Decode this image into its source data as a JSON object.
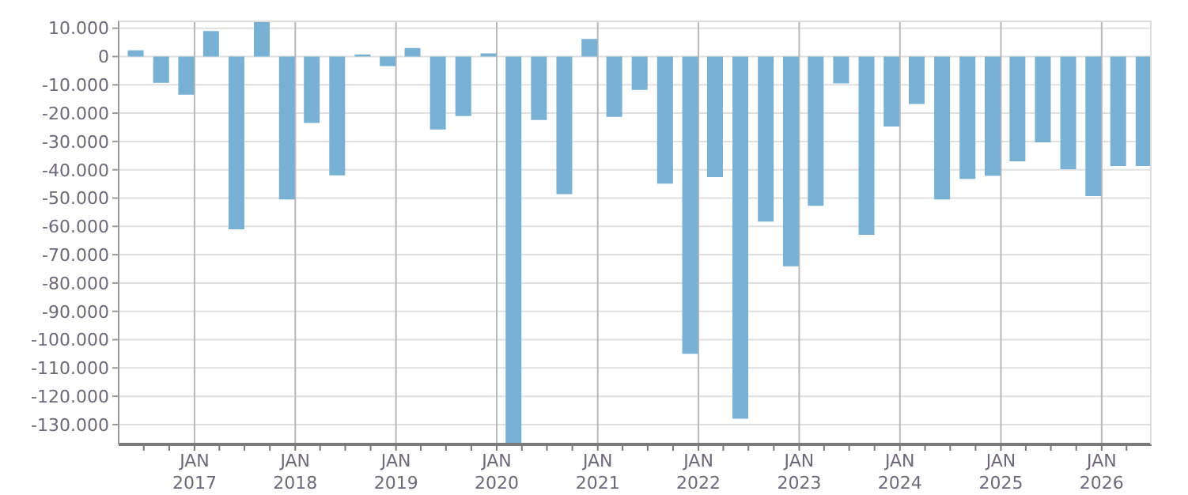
{
  "chart_data": {
    "type": "bar",
    "color": "#78b1d3",
    "x": [
      "2016-06",
      "2016-09",
      "2016-12",
      "2017-03",
      "2017-06",
      "2017-09",
      "2017-12",
      "2018-03",
      "2018-06",
      "2018-09",
      "2018-12",
      "2019-03",
      "2019-06",
      "2019-09",
      "2019-12",
      "2020-03",
      "2020-06",
      "2020-09",
      "2020-12",
      "2021-03",
      "2021-06",
      "2021-09",
      "2021-12",
      "2022-03",
      "2022-06",
      "2022-09",
      "2022-12",
      "2023-03",
      "2023-06",
      "2023-09",
      "2023-12",
      "2024-03",
      "2024-06",
      "2024-09",
      "2024-12",
      "2025-03",
      "2025-06",
      "2025-09",
      "2025-12",
      "2026-03",
      "2026-06"
    ],
    "values": [
      2200,
      -9300,
      -13500,
      9000,
      -61000,
      12300,
      -50500,
      -23500,
      -42000,
      700,
      -3400,
      3000,
      -25800,
      -21000,
      1100,
      -137000,
      -22400,
      -48600,
      6200,
      -21300,
      -11800,
      -44900,
      -105000,
      -42600,
      -127900,
      -58300,
      -74100,
      -52700,
      -9500,
      -63000,
      -24700,
      -16800,
      -50500,
      -43200,
      -42100,
      -37000,
      -30300,
      -39800,
      -49300,
      -38700,
      -38700
    ],
    "xlim": [
      "2016-04",
      "2026-07"
    ],
    "xticks": [
      {
        "value": "2016-07",
        "label": null
      },
      {
        "value": "2016-10",
        "label": null
      },
      {
        "value": "2017-01",
        "label": "JAN 2017"
      },
      {
        "value": "2017-04",
        "label": null
      },
      {
        "value": "2017-07",
        "label": null
      },
      {
        "value": "2017-10",
        "label": null
      },
      {
        "value": "2018-01",
        "label": "JAN 2018"
      },
      {
        "value": "2018-04",
        "label": null
      },
      {
        "value": "2018-07",
        "label": null
      },
      {
        "value": "2018-10",
        "label": null
      },
      {
        "value": "2019-01",
        "label": "JAN 2019"
      },
      {
        "value": "2019-04",
        "label": null
      },
      {
        "value": "2019-07",
        "label": null
      },
      {
        "value": "2019-10",
        "label": null
      },
      {
        "value": "2020-01",
        "label": "JAN 2020"
      },
      {
        "value": "2020-04",
        "label": null
      },
      {
        "value": "2020-07",
        "label": null
      },
      {
        "value": "2020-10",
        "label": null
      },
      {
        "value": "2021-01",
        "label": "JAN 2021"
      },
      {
        "value": "2021-04",
        "label": null
      },
      {
        "value": "2021-07",
        "label": null
      },
      {
        "value": "2021-10",
        "label": null
      },
      {
        "value": "2022-01",
        "label": "JAN 2022"
      },
      {
        "value": "2022-04",
        "label": null
      },
      {
        "value": "2022-07",
        "label": null
      },
      {
        "value": "2022-10",
        "label": null
      },
      {
        "value": "2023-01",
        "label": "JAN 2023"
      },
      {
        "value": "2023-04",
        "label": null
      },
      {
        "value": "2023-07",
        "label": null
      },
      {
        "value": "2023-10",
        "label": null
      },
      {
        "value": "2024-01",
        "label": "JAN 2024"
      },
      {
        "value": "2024-04",
        "label": null
      },
      {
        "value": "2024-07",
        "label": null
      },
      {
        "value": "2024-10",
        "label": null
      },
      {
        "value": "2025-01",
        "label": "JAN 2025"
      },
      {
        "value": "2025-04",
        "label": null
      },
      {
        "value": "2025-07",
        "label": null
      },
      {
        "value": "2025-10",
        "label": null
      },
      {
        "value": "2026-01",
        "label": "JAN 2026"
      },
      {
        "value": "2026-04",
        "label": null
      }
    ],
    "ylim": [
      -137000,
      12700
    ],
    "yticks": [
      {
        "value": -130000,
        "label": "-130.000"
      },
      {
        "value": -120000,
        "label": "-120.000"
      },
      {
        "value": -110000,
        "label": "-110.000"
      },
      {
        "value": -100000,
        "label": "-100.000"
      },
      {
        "value": -90000,
        "label": "-90.000"
      },
      {
        "value": -80000,
        "label": "-80.000"
      },
      {
        "value": -70000,
        "label": "-70.000"
      },
      {
        "value": -60000,
        "label": "-60.000"
      },
      {
        "value": -50000,
        "label": "-50.000"
      },
      {
        "value": -40000,
        "label": "-40.000"
      },
      {
        "value": -30000,
        "label": "-30.000"
      },
      {
        "value": -20000,
        "label": "-20.000"
      },
      {
        "value": -10000,
        "label": "-10.000"
      },
      {
        "value": 0,
        "label": "0"
      },
      {
        "value": 10000,
        "label": "10.000"
      }
    ],
    "grid": true
  }
}
